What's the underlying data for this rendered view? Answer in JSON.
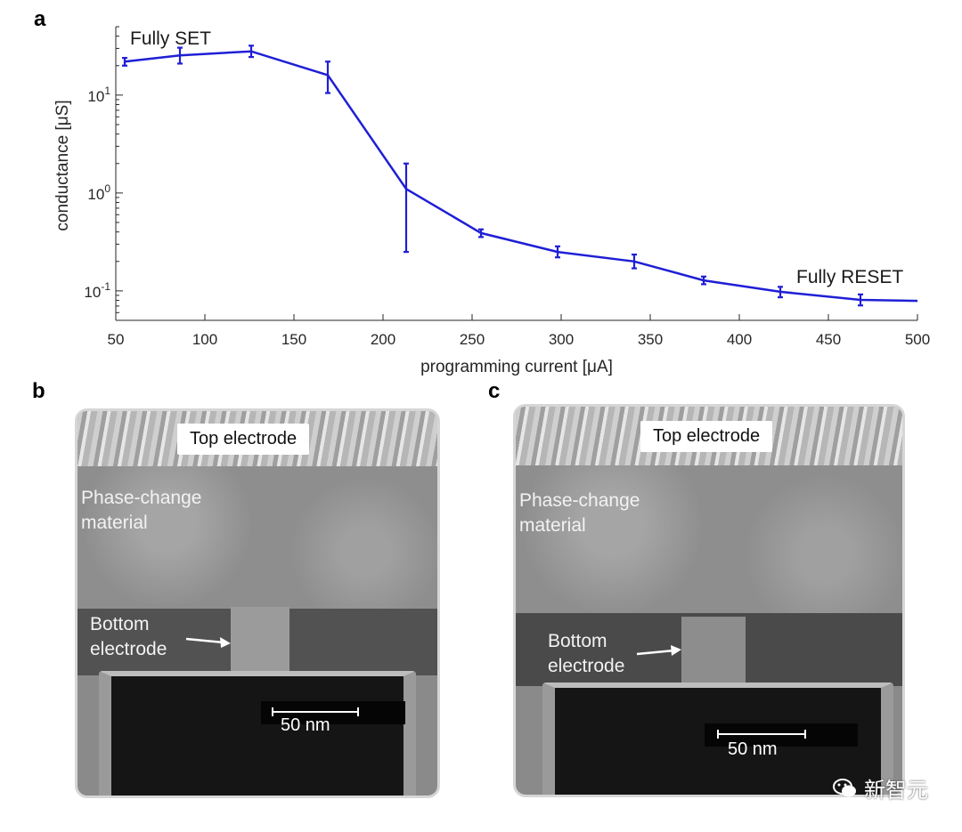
{
  "panels": {
    "a": "a",
    "b": "b",
    "c": "c"
  },
  "chart_data": {
    "type": "line",
    "title": "",
    "xlabel": "programming current [μA]",
    "ylabel": "conductance [μS]",
    "yscale": "log",
    "xlim": [
      50,
      500
    ],
    "ylim": [
      0.05,
      50
    ],
    "xticks": [
      50,
      100,
      150,
      200,
      250,
      300,
      350,
      400,
      450,
      500
    ],
    "yticks": [
      {
        "value": 0.1,
        "label": "10",
        "exp": "-1"
      },
      {
        "value": 1,
        "label": "10",
        "exp": "0"
      },
      {
        "value": 10,
        "label": "10",
        "exp": "1"
      }
    ],
    "color": "#1f1fd6",
    "series": [
      {
        "name": "conductance",
        "x": [
          55,
          86,
          126,
          169,
          213,
          255,
          298,
          341,
          380,
          423,
          468,
          500
        ],
        "y": [
          22,
          25.5,
          28,
          16,
          1.1,
          0.39,
          0.25,
          0.2,
          0.128,
          0.098,
          0.081,
          0.079
        ],
        "err_low": [
          20,
          21,
          24.5,
          10.5,
          0.25,
          0.355,
          0.22,
          0.17,
          0.117,
          0.086,
          0.071,
          null
        ],
        "err_high": [
          24,
          30.5,
          32,
          22,
          2.0,
          0.425,
          0.285,
          0.235,
          0.14,
          0.11,
          0.092,
          null
        ]
      }
    ],
    "annotations": [
      {
        "text": "Fully SET"
      },
      {
        "text": "Fully RESET"
      }
    ]
  },
  "tem_b": {
    "top_label": "Top electrode",
    "pcm_label": "Phase-change\nmaterial",
    "bottom_label": "Bottom\nelectrode",
    "scale_label": "50 nm"
  },
  "tem_c": {
    "top_label": "Top electrode",
    "pcm_label": "Phase-change\nmaterial",
    "bottom_label": "Bottom\nelectrode",
    "scale_label": "50 nm"
  },
  "watermark": "新智元"
}
